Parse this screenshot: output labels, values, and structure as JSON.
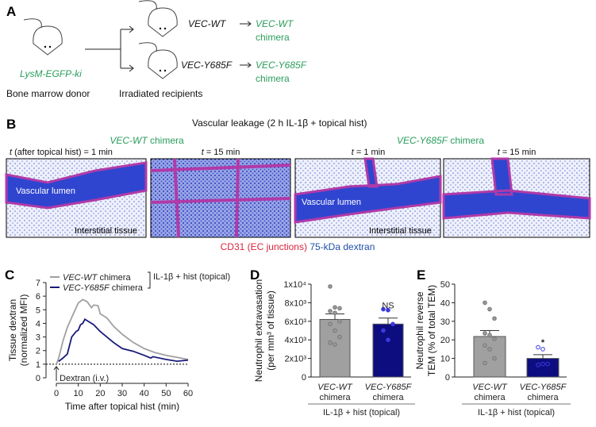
{
  "panel_labels": [
    "A",
    "B",
    "C",
    "D",
    "E"
  ],
  "panel_a": {
    "donor_genotype": "LysM-EGFP-ki",
    "donor_label": "Bone marrow donor",
    "recipients_label": "Irradiated recipients",
    "recipients": [
      {
        "genotype": "VEC-WT",
        "chimera_genotype": "VEC-WT",
        "chimera": "chimera"
      },
      {
        "genotype": "VEC-Y685F",
        "chimera_genotype": "VEC-Y685F",
        "chimera": "chimera"
      }
    ]
  },
  "panel_b": {
    "title": "Vascular leakage (2 h IL-1β + topical hist)",
    "groups": [
      {
        "genotype": "VEC-WT",
        "suffix": " chimera"
      },
      {
        "genotype": "VEC-Y685F",
        "suffix": " chimera"
      }
    ],
    "time_labels": [
      "t",
      "(after topical hist) = 1 min",
      "t",
      "= 15 min",
      "t",
      "= 1 min",
      "t",
      "= 15 min"
    ],
    "image_labels": {
      "lumen1": "Vascular lumen",
      "tissue1": "Interstitial tissue",
      "lumen3": "Vascular lumen",
      "tissue3": "Interstitial tissue"
    },
    "caption_red": "CD31 (EC junctions)",
    "caption_blue": "75-kDa dextran",
    "colors": {
      "red": "#d7263d",
      "blue": "#1f4fa8"
    }
  },
  "chart_data": [
    {
      "type": "line",
      "xlabel": "Time after topical hist (min)",
      "ylabel": [
        "Tissue dextran",
        "(normalized MFI)"
      ],
      "xlim": [
        0,
        60
      ],
      "ylim": [
        0,
        7
      ],
      "xticks": [
        0,
        10,
        20,
        30,
        40,
        50,
        60
      ],
      "yticks": [
        0,
        1,
        2,
        3,
        4,
        5,
        6,
        7
      ],
      "baseline": 1,
      "annotation": "Dextran (i.v.)",
      "legend_bracket": "IL-1β + hist (topical)",
      "series": [
        {
          "name": "VEC-WT",
          "suffix": " chimera",
          "color": "#a0a0a0",
          "points": [
            [
              0,
              1
            ],
            [
              1,
              1.4
            ],
            [
              3,
              2.7
            ],
            [
              5,
              3.7
            ],
            [
              8,
              4.8
            ],
            [
              10,
              5.5
            ],
            [
              12,
              5.75
            ],
            [
              14,
              5.6
            ],
            [
              16,
              5.15
            ],
            [
              17,
              5.35
            ],
            [
              19,
              5.3
            ],
            [
              20,
              4.7
            ],
            [
              23,
              4.4
            ],
            [
              26,
              3.8
            ],
            [
              30,
              3.2
            ],
            [
              35,
              2.6
            ],
            [
              40,
              2.15
            ],
            [
              45,
              1.85
            ],
            [
              50,
              1.65
            ],
            [
              55,
              1.5
            ],
            [
              60,
              1.35
            ]
          ]
        },
        {
          "name": "VEC-Y685F",
          "suffix": " chimera",
          "color": "#1a1a7a",
          "points": [
            [
              1,
              1.2
            ],
            [
              3,
              1.45
            ],
            [
              5,
              1.75
            ],
            [
              7,
              3.0
            ],
            [
              9,
              3.4
            ],
            [
              10,
              3.5
            ],
            [
              11,
              3.9
            ],
            [
              12,
              4.0
            ],
            [
              13,
              4.3
            ],
            [
              14,
              4.2
            ],
            [
              17,
              3.9
            ],
            [
              20,
              3.4
            ],
            [
              23,
              3.0
            ],
            [
              26,
              2.6
            ],
            [
              30,
              2.15
            ],
            [
              35,
              1.95
            ],
            [
              40,
              1.65
            ],
            [
              43,
              1.45
            ],
            [
              44,
              1.55
            ],
            [
              50,
              1.35
            ],
            [
              55,
              1.22
            ],
            [
              60,
              1.3
            ]
          ]
        }
      ]
    },
    {
      "type": "bar",
      "ylabel": [
        "Neutrophil extravasation",
        "(per mm³ of tissue)"
      ],
      "ylim": [
        0,
        10000
      ],
      "yticks": [
        "0",
        "2x10³",
        "4x10³",
        "6x10³",
        "8x10³",
        "1x10⁴"
      ],
      "group_label": "IL-1β + hist (topical)",
      "bars": [
        {
          "genotype": "VEC-WT",
          "suffix": "chimera",
          "mean": 6200,
          "sem": 600,
          "color": "#a0a0a0",
          "points": [
            9750,
            7500,
            7400,
            7100,
            6900,
            6000,
            5700,
            5000,
            4300,
            3700,
            3500
          ],
          "open": false
        },
        {
          "genotype": "VEC-Y685F",
          "suffix": "chimera",
          "mean": 5700,
          "sem": 650,
          "color": "#0d0d80",
          "points": [
            7300,
            7200,
            5700,
            5000,
            4000
          ],
          "open": false,
          "sig": "NS"
        }
      ]
    },
    {
      "type": "bar",
      "ylabel": [
        "Neutrophil reverse",
        "TEM (% of total TEM)"
      ],
      "ylim": [
        0,
        50
      ],
      "yticks": [
        "0",
        "10",
        "20",
        "30",
        "40",
        "50"
      ],
      "group_label": "IL-1β + hist (topical)",
      "bars": [
        {
          "genotype": "VEC-WT",
          "suffix": "chimera",
          "mean": 21.8,
          "sem": 3.2,
          "color": "#a0a0a0",
          "points": [
            40,
            36.5,
            31.5,
            23.5,
            22.5,
            20.5,
            17,
            15,
            10,
            7.5
          ],
          "open": false
        },
        {
          "genotype": "VEC-Y685F",
          "suffix": "chimera",
          "mean": 10,
          "sem": 2,
          "color": "#0d0d80",
          "points": [
            16,
            15,
            7,
            6.5,
            7
          ],
          "open": true,
          "sig": "*"
        }
      ]
    }
  ]
}
